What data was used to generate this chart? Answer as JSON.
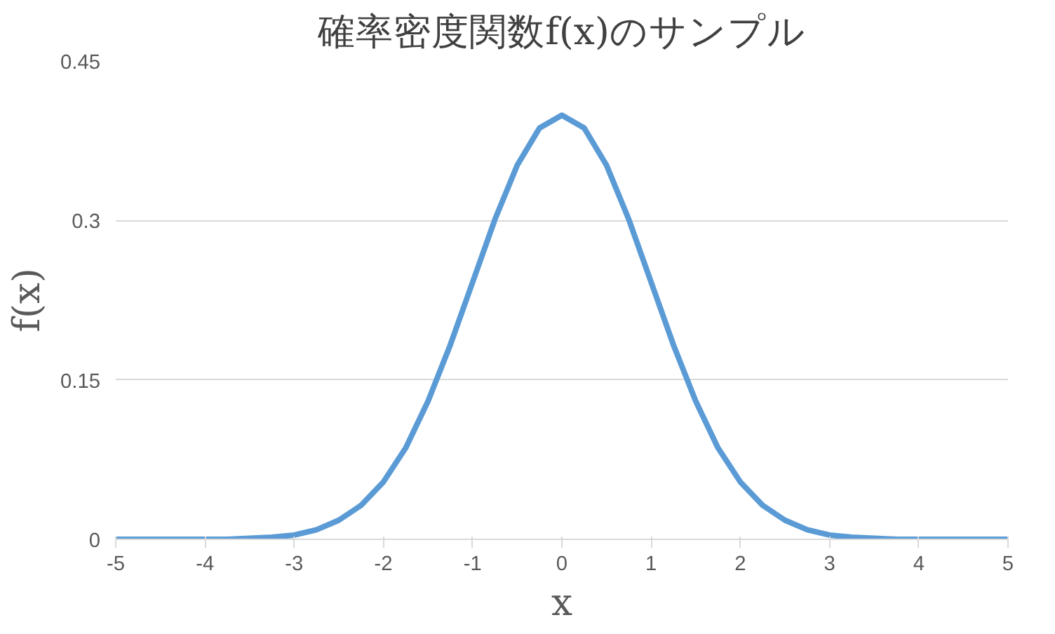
{
  "chart_data": {
    "type": "line",
    "title": "確率密度関数f(x)のサンプル",
    "xlabel": "x",
    "ylabel": "f(x)",
    "x": [
      -5,
      -4.75,
      -4.5,
      -4.25,
      -4,
      -3.75,
      -3.5,
      -3.25,
      -3,
      -2.75,
      -2.5,
      -2.25,
      -2,
      -1.75,
      -1.5,
      -1.25,
      -1,
      -0.75,
      -0.5,
      -0.25,
      0,
      0.25,
      0.5,
      0.75,
      1,
      1.25,
      1.5,
      1.75,
      2,
      2.25,
      2.5,
      2.75,
      3,
      3.25,
      3.5,
      3.75,
      4,
      4.25,
      4.5,
      4.75,
      5
    ],
    "series": [
      {
        "color": "#5b9bd5",
        "values": [
          0,
          0,
          0,
          0,
          0,
          0,
          0.001,
          0.002,
          0.004,
          0.009,
          0.018,
          0.032,
          0.054,
          0.086,
          0.13,
          0.183,
          0.242,
          0.301,
          0.352,
          0.387,
          0.399,
          0.387,
          0.352,
          0.301,
          0.242,
          0.183,
          0.13,
          0.086,
          0.054,
          0.032,
          0.018,
          0.009,
          0.004,
          0.002,
          0.001,
          0,
          0,
          0,
          0,
          0,
          0
        ]
      }
    ],
    "xlim": [
      -5,
      5
    ],
    "xticks": [
      -5,
      -4,
      -3,
      -2,
      -1,
      0,
      1,
      2,
      3,
      4,
      5
    ],
    "ylim": [
      0,
      0.45
    ],
    "yticks": [
      0,
      0.15,
      0.3,
      0.45
    ],
    "grid": "y",
    "marker": "none",
    "line_style": "solid"
  }
}
